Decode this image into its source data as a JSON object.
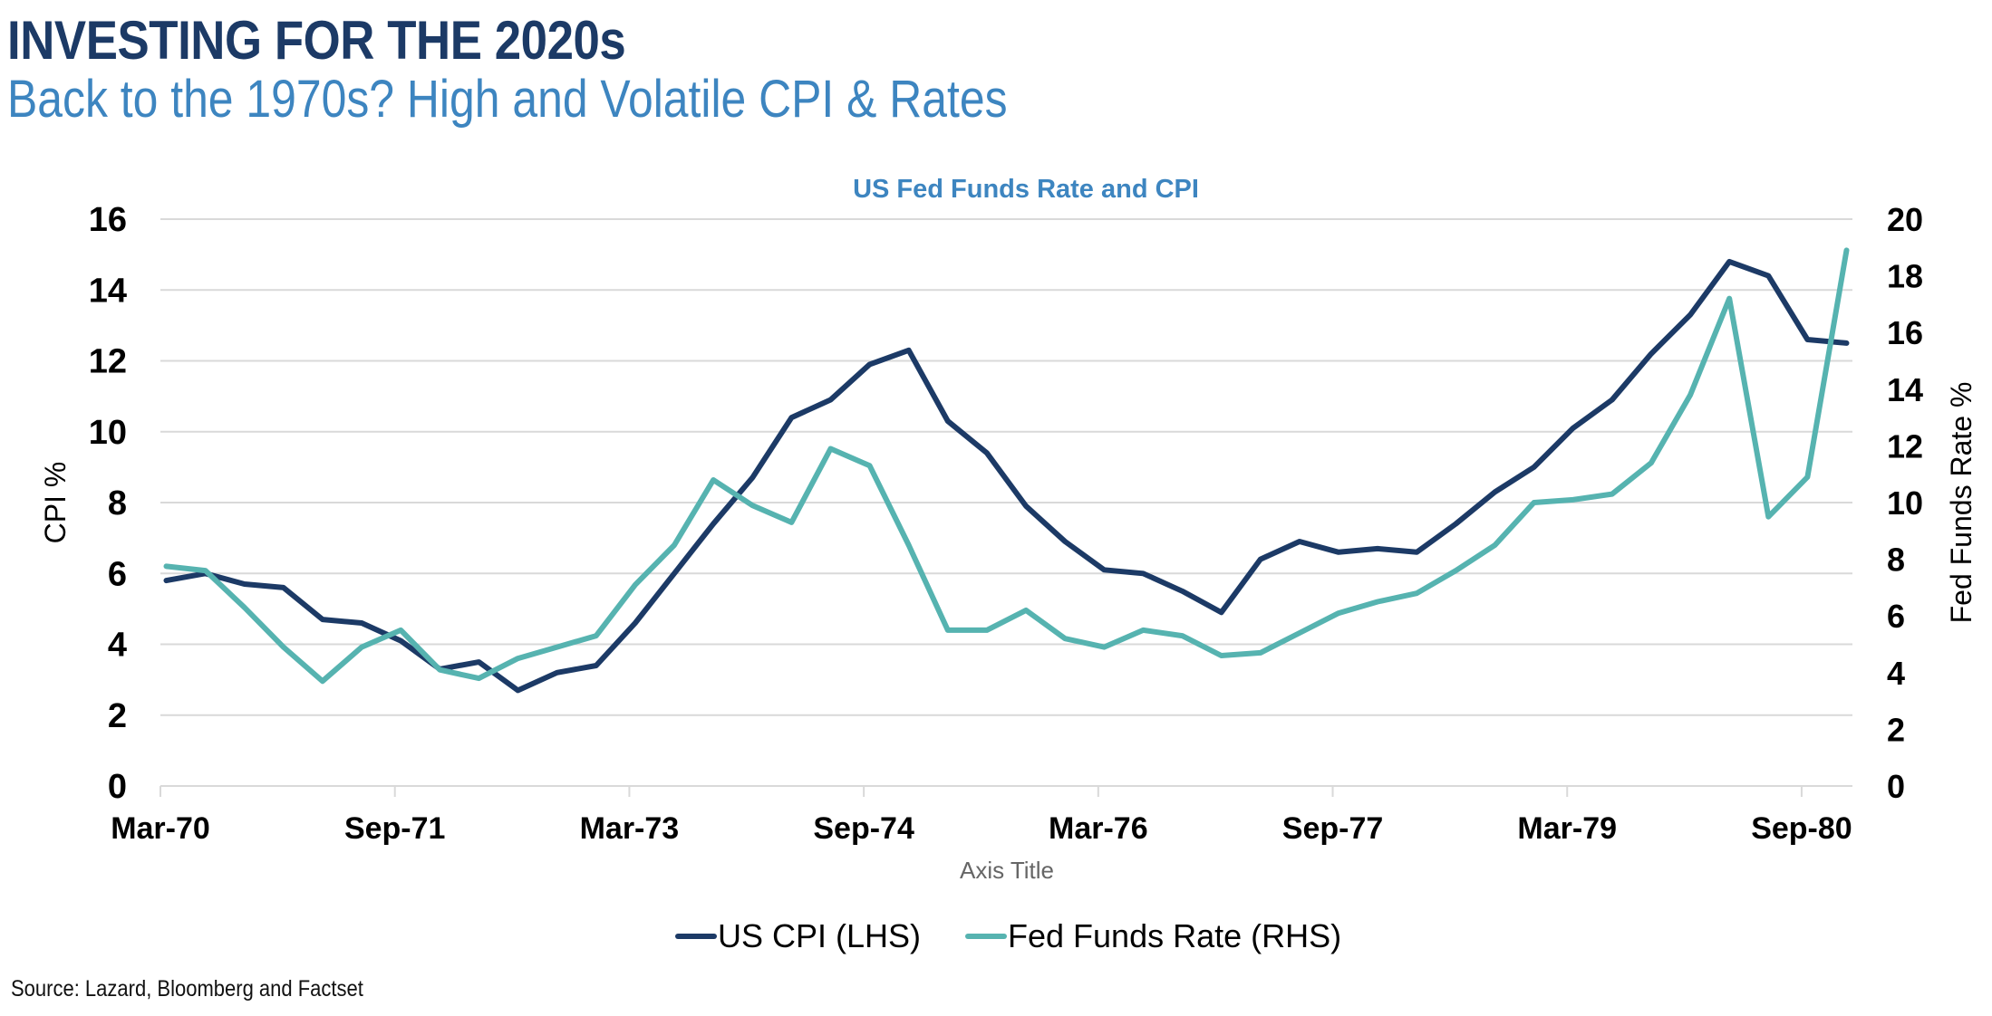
{
  "header": {
    "title": "INVESTING FOR THE 2020s",
    "subtitle": "Back to the 1970s? High and Volatile CPI & Rates"
  },
  "footer": {
    "source": "Source: Lazard, Bloomberg and Factset"
  },
  "colors": {
    "title": "#1c3a66",
    "subtitle": "#3d85c0",
    "cpi_line": "#1c3a66",
    "fed_line": "#56b3b0",
    "gridline": "#d9d9d9"
  },
  "chart_data": {
    "type": "line",
    "title": "US Fed Funds Rate and CPI",
    "xlabel": "Axis Title",
    "ylabel": "CPI %",
    "y2label": "Fed Funds Rate %",
    "ylim": [
      0,
      16
    ],
    "yticks": [
      "0",
      "2",
      "4",
      "6",
      "8",
      "10",
      "12",
      "14",
      "16"
    ],
    "y2lim": [
      0,
      20
    ],
    "y2ticks": [
      "0",
      "2",
      "4",
      "6",
      "8",
      "10",
      "12",
      "14",
      "16",
      "18",
      "20"
    ],
    "grid": true,
    "legend_position": "bottom",
    "x": [
      "Mar-70",
      "Jun-70",
      "Sep-70",
      "Dec-70",
      "Mar-71",
      "Jun-71",
      "Sep-71",
      "Dec-71",
      "Mar-72",
      "Jun-72",
      "Sep-72",
      "Dec-72",
      "Mar-73",
      "Jun-73",
      "Sep-73",
      "Dec-73",
      "Mar-74",
      "Jun-74",
      "Sep-74",
      "Dec-74",
      "Mar-75",
      "Jun-75",
      "Sep-75",
      "Dec-75",
      "Mar-76",
      "Jun-76",
      "Sep-76",
      "Dec-76",
      "Mar-77",
      "Jun-77",
      "Sep-77",
      "Dec-77",
      "Mar-78",
      "Jun-78",
      "Sep-78",
      "Dec-78",
      "Mar-79",
      "Jun-79",
      "Sep-79",
      "Dec-79",
      "Mar-80",
      "Jun-80",
      "Sep-80",
      "Dec-80"
    ],
    "xtick_labels": [
      "Mar-70",
      "Sep-71",
      "Mar-73",
      "Sep-74",
      "Mar-76",
      "Sep-77",
      "Mar-79",
      "Sep-80"
    ],
    "xtick_every": 6,
    "series": [
      {
        "name": "US CPI (LHS)",
        "axis": "left",
        "color": "#1c3a66",
        "values": [
          5.8,
          6.0,
          5.7,
          5.6,
          4.7,
          4.6,
          4.1,
          3.3,
          3.5,
          2.7,
          3.2,
          3.4,
          4.6,
          6.0,
          7.4,
          8.7,
          10.4,
          10.9,
          11.9,
          12.3,
          10.3,
          9.4,
          7.9,
          6.9,
          6.1,
          6.0,
          5.5,
          4.9,
          6.4,
          6.9,
          6.6,
          6.7,
          6.6,
          7.4,
          8.3,
          9.0,
          10.1,
          10.9,
          12.2,
          13.3,
          14.8,
          14.4,
          12.6,
          12.5
        ]
      },
      {
        "name": "Fed Funds Rate (RHS)",
        "axis": "right",
        "color": "#56b3b0",
        "values": [
          7.75,
          7.6,
          6.3,
          4.9,
          3.7,
          4.9,
          5.5,
          4.1,
          3.8,
          4.5,
          4.9,
          5.3,
          7.1,
          8.5,
          10.8,
          9.9,
          9.3,
          11.9,
          11.3,
          8.5,
          5.5,
          5.5,
          6.2,
          5.2,
          4.9,
          5.5,
          5.3,
          4.6,
          4.7,
          5.4,
          6.1,
          6.5,
          6.8,
          7.6,
          8.5,
          10.0,
          10.1,
          10.3,
          11.4,
          13.8,
          17.2,
          9.5,
          10.9,
          18.9
        ]
      }
    ]
  }
}
